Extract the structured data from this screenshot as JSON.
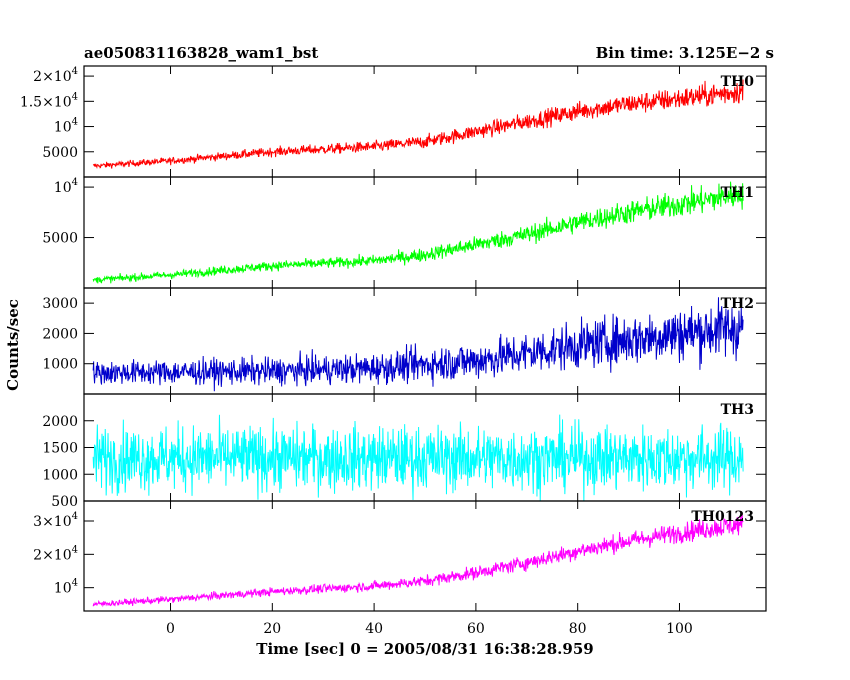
{
  "chart_data": {
    "type": "line",
    "title": "ae050831163828_wam1_bst",
    "subtitle": "Bin time: 3.125E−2 s",
    "xlabel": "Time [sec] 0 = 2005/08/31 16:38:28.959",
    "ylabel": "Counts/sec",
    "xlim": [
      -17,
      117
    ],
    "x_ticks": [
      {
        "value": 0,
        "label": "0"
      },
      {
        "value": 20,
        "label": "20"
      },
      {
        "value": 40,
        "label": "40"
      },
      {
        "value": 60,
        "label": "60"
      },
      {
        "value": 80,
        "label": "80"
      },
      {
        "value": 100,
        "label": "100"
      }
    ],
    "panels": [
      {
        "name": "TH0",
        "color": "#ff0000",
        "ylim": [
          0,
          22000
        ],
        "y_ticks": [
          {
            "value": 5000,
            "label": "5000"
          },
          {
            "value": 10000,
            "label": "10",
            "sup": "4"
          },
          {
            "value": 15000,
            "label": "1.5×10",
            "sup": "4"
          },
          {
            "value": 20000,
            "label": "2×10",
            "sup": "4"
          }
        ],
        "trend": [
          [
            -15,
            2200
          ],
          [
            0,
            3200
          ],
          [
            20,
            5000
          ],
          [
            40,
            6000
          ],
          [
            50,
            7000
          ],
          [
            60,
            9000
          ],
          [
            70,
            11000
          ],
          [
            80,
            13000
          ],
          [
            90,
            14500
          ],
          [
            100,
            15500
          ],
          [
            112,
            17000
          ]
        ],
        "noise": [
          [
            -15,
            500
          ],
          [
            40,
            1000
          ],
          [
            112,
            2200
          ]
        ]
      },
      {
        "name": "TH1",
        "color": "#00ff00",
        "ylim": [
          0,
          11000
        ],
        "y_ticks": [
          {
            "value": 5000,
            "label": "5000"
          },
          {
            "value": 10000,
            "label": "10",
            "sup": "4"
          }
        ],
        "trend": [
          [
            -15,
            800
          ],
          [
            0,
            1300
          ],
          [
            20,
            2200
          ],
          [
            40,
            2700
          ],
          [
            50,
            3300
          ],
          [
            60,
            4300
          ],
          [
            70,
            5300
          ],
          [
            80,
            6500
          ],
          [
            90,
            7500
          ],
          [
            100,
            8300
          ],
          [
            112,
            9300
          ]
        ],
        "noise": [
          [
            -15,
            300
          ],
          [
            40,
            500
          ],
          [
            112,
            1300
          ]
        ]
      },
      {
        "name": "TH2",
        "color": "#0000cc",
        "ylim": [
          0,
          3500
        ],
        "y_ticks": [
          {
            "value": 1000,
            "label": "1000"
          },
          {
            "value": 2000,
            "label": "2000"
          },
          {
            "value": 3000,
            "label": "3000"
          }
        ],
        "trend": [
          [
            -15,
            700
          ],
          [
            20,
            750
          ],
          [
            40,
            850
          ],
          [
            60,
            1100
          ],
          [
            80,
            1600
          ],
          [
            100,
            2000
          ],
          [
            112,
            2200
          ]
        ],
        "noise": [
          [
            -15,
            350
          ],
          [
            40,
            450
          ],
          [
            112,
            900
          ]
        ]
      },
      {
        "name": "TH3",
        "color": "#00ffff",
        "ylim": [
          500,
          2500
        ],
        "y_ticks": [
          {
            "value": 500,
            "label": "500"
          },
          {
            "value": 1000,
            "label": "1000"
          },
          {
            "value": 1500,
            "label": "1500"
          },
          {
            "value": 2000,
            "label": "2000"
          }
        ],
        "trend": [
          [
            -15,
            1300
          ],
          [
            112,
            1300
          ]
        ],
        "noise": [
          [
            -15,
            550
          ],
          [
            112,
            550
          ]
        ]
      },
      {
        "name": "TH0123",
        "color": "#ff00ff",
        "ylim": [
          3000,
          36000
        ],
        "y_ticks": [
          {
            "value": 10000,
            "label": "10",
            "sup": "4"
          },
          {
            "value": 20000,
            "label": "2×10",
            "sup": "4"
          },
          {
            "value": 30000,
            "label": "3×10",
            "sup": "4"
          }
        ],
        "trend": [
          [
            -15,
            5000
          ],
          [
            0,
            6500
          ],
          [
            20,
            8800
          ],
          [
            40,
            10500
          ],
          [
            50,
            12000
          ],
          [
            60,
            14500
          ],
          [
            70,
            17500
          ],
          [
            80,
            21000
          ],
          [
            90,
            24000
          ],
          [
            100,
            26500
          ],
          [
            112,
            29000
          ]
        ],
        "noise": [
          [
            -15,
            800
          ],
          [
            40,
            1300
          ],
          [
            112,
            3000
          ]
        ]
      }
    ]
  }
}
